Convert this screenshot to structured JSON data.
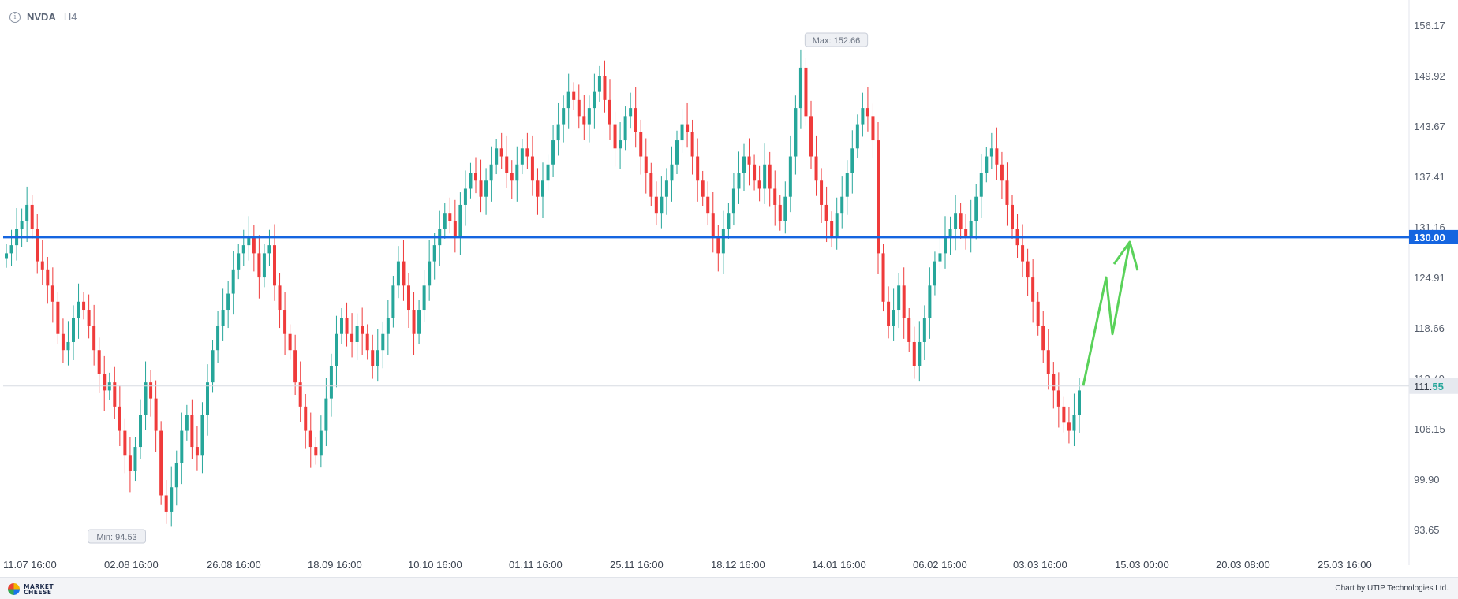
{
  "header": {
    "symbol": "NVDA",
    "timeframe": "H4",
    "info_icon": "info-icon"
  },
  "footer": {
    "logo_text": "MARKET\nCHEESE",
    "credit": "Chart by UTIP Technologies Ltd."
  },
  "colors": {
    "up": "#26a69a",
    "down": "#ef3b3b",
    "level_line": "#1565e0",
    "forecast": "#5ad25a",
    "grid": "#eceef2"
  },
  "chart_data": {
    "type": "candlestick",
    "y_ticks": [
      "156.17",
      "149.92",
      "143.67",
      "137.41",
      "131.16",
      "124.91",
      "118.66",
      "112.40",
      "106.15",
      "99.90",
      "93.65"
    ],
    "y_tick_values": [
      156.17,
      149.92,
      143.67,
      137.41,
      131.16,
      124.91,
      118.66,
      112.4,
      106.15,
      99.9,
      93.65
    ],
    "x_ticks": [
      "11.07 16:00",
      "02.08 16:00",
      "26.08 16:00",
      "18.09 16:00",
      "10.10 16:00",
      "01.11 16:00",
      "25.11 16:00",
      "18.12 16:00",
      "14.01 16:00",
      "06.02 16:00",
      "03.03 16:00",
      "15.03 00:00",
      "20.03 08:00",
      "25.03 16:00"
    ],
    "ylim": [
      91.0,
      158.5
    ],
    "level_line": {
      "value": 130.0,
      "label": "130.00"
    },
    "current_price": {
      "value": 111.55,
      "label_main": "111.",
      "label_accent": "55"
    },
    "max_label": {
      "text": "Max: 152.66",
      "value": 152.66
    },
    "min_label": {
      "text": "Min: 94.53",
      "value": 94.53
    },
    "closes": [
      128,
      129,
      131,
      132,
      134,
      131,
      127,
      126,
      124,
      122,
      118,
      116,
      117,
      120,
      122,
      121,
      119,
      116,
      113,
      111,
      112,
      109,
      106,
      103,
      101,
      104,
      108,
      112,
      110,
      106,
      98,
      96,
      99,
      102,
      106,
      108,
      104,
      103,
      108,
      112,
      116,
      119,
      121,
      123,
      126,
      128,
      129,
      130,
      128,
      125,
      128,
      129,
      124,
      121,
      118,
      116,
      112,
      109,
      106,
      104,
      103,
      106,
      110,
      114,
      118,
      120,
      118,
      117,
      119,
      118,
      116,
      114,
      116,
      118,
      120,
      124,
      127,
      124,
      121,
      118,
      121,
      124,
      127,
      129,
      131,
      133,
      132,
      130,
      134,
      136,
      138,
      137,
      135,
      137,
      139,
      141,
      140,
      138,
      137,
      139,
      141,
      140,
      137,
      135,
      137,
      139,
      142,
      144,
      146,
      148,
      147,
      145,
      144,
      146,
      148,
      150,
      147,
      144,
      141,
      142,
      145,
      146,
      143,
      140,
      138,
      135,
      133,
      135,
      137,
      139,
      142,
      144,
      143,
      140,
      137,
      135,
      133,
      130,
      128,
      131,
      133,
      136,
      138,
      140,
      139,
      137,
      136,
      139,
      136,
      134,
      132,
      135,
      140,
      146,
      151,
      145,
      140,
      137,
      134,
      132,
      130,
      133,
      135,
      138,
      141,
      144,
      146,
      145,
      142,
      128,
      122,
      119,
      121,
      124,
      120,
      117,
      114,
      117,
      120,
      124,
      127,
      128,
      130,
      131,
      133,
      131,
      130,
      132,
      135,
      138,
      140,
      141,
      139,
      137,
      134,
      131,
      129,
      127,
      125,
      122,
      119,
      116,
      113,
      111,
      109,
      107,
      106,
      108,
      111
    ]
  }
}
